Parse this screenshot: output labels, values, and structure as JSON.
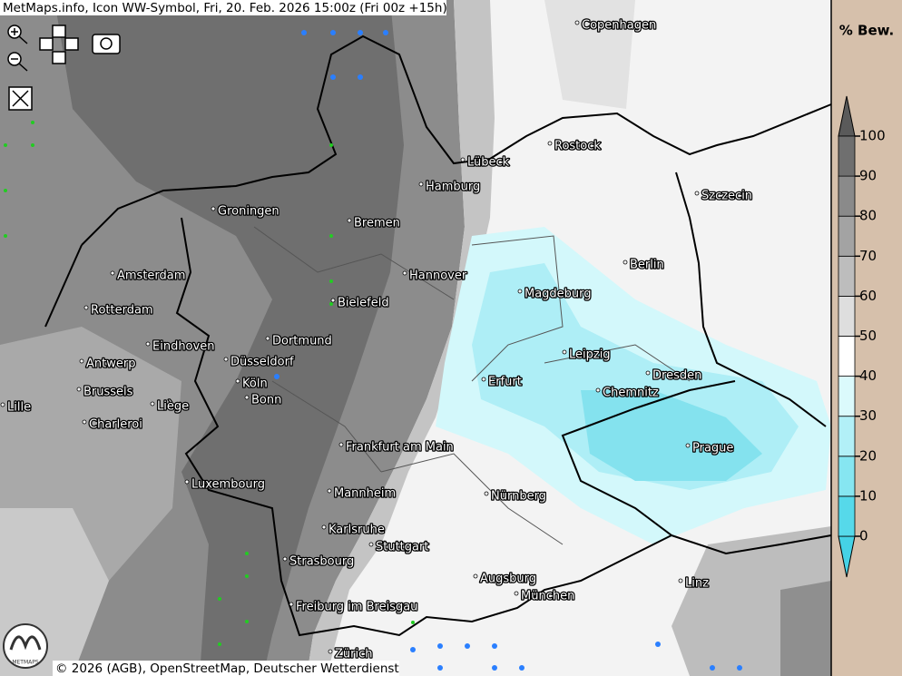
{
  "header": {
    "title": "MetMaps.info, Icon WW-Symbol, Fri, 20. Feb. 2026 15:00z (Fri 00z +15h)"
  },
  "map": {
    "cities": [
      "Copenhagen",
      "Rostock",
      "Lübeck",
      "Hamburg",
      "Szczecin",
      "Groningen",
      "Bremen",
      "Berlin",
      "Amsterdam",
      "Hannover",
      "Magdeburg",
      "Bielefeld",
      "Rotterdam",
      "Dortmund",
      "Eindhoven",
      "Leipzig",
      "Düsseldorf",
      "Antwerp",
      "Dresden",
      "Erfurt",
      "Köln",
      "Brussels",
      "Chemnitz",
      "Bonn",
      "Lille",
      "Liège",
      "Charleroi",
      "Frankfurt am Main",
      "Prague",
      "Luxembourg",
      "Mannheim",
      "Nürnberg",
      "Karlsruhe",
      "Stuttgart",
      "Strasbourg",
      "Augsburg",
      "Linz",
      "München",
      "Freiburg im Breisgau",
      "Zürich"
    ]
  },
  "legend": {
    "title": "% Bew.",
    "ticks": [
      0,
      10,
      20,
      30,
      40,
      50,
      60,
      70,
      80,
      90,
      100
    ],
    "colors": [
      "#56d9ea",
      "#86e6f1",
      "#b2f0f7",
      "#dbfafc",
      "#ffffff",
      "#dedede",
      "#bdbdbd",
      "#a3a3a3",
      "#8a8a8a",
      "#6f6f6f"
    ]
  },
  "footer": {
    "copyright": "© 2026 (AGB), OpenStreetMap, Deutscher Wetterdienst"
  },
  "logo": {
    "text": "METMAPS"
  }
}
